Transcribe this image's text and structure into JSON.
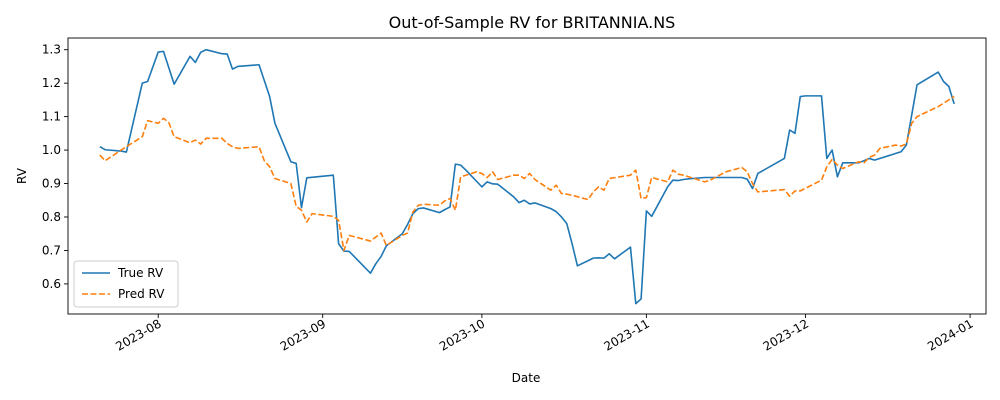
{
  "chart_data": {
    "type": "line",
    "title": "Out-of-Sample RV for BRITANNIA.NS",
    "xlabel": "Date",
    "ylabel": "RV",
    "xlim": [
      "2023-07-15",
      "2024-01-04"
    ],
    "ylim": [
      0.51,
      1.335
    ],
    "x_ticks": [
      {
        "date": "2023-08-01",
        "label": "2023-08"
      },
      {
        "date": "2023-09-01",
        "label": "2023-09"
      },
      {
        "date": "2023-10-01",
        "label": "2023-10"
      },
      {
        "date": "2023-11-01",
        "label": "2023-11"
      },
      {
        "date": "2023-12-01",
        "label": "2023-12"
      },
      {
        "date": "2024-01-01",
        "label": "2024-01"
      }
    ],
    "y_ticks": [
      {
        "value": 0.6,
        "label": "0.6"
      },
      {
        "value": 0.7,
        "label": "0.7"
      },
      {
        "value": 0.8,
        "label": "0.8"
      },
      {
        "value": 0.9,
        "label": "0.9"
      },
      {
        "value": 1.0,
        "label": "1.0"
      },
      {
        "value": 1.1,
        "label": "1.1"
      },
      {
        "value": 1.2,
        "label": "1.2"
      },
      {
        "value": 1.3,
        "label": "1.3"
      }
    ],
    "grid": false,
    "legend_position": "lower-left",
    "series": [
      {
        "name": "True RV",
        "color": "#1f77b4",
        "dash": "solid",
        "points": [
          [
            "2023-07-21",
            1.01
          ],
          [
            "2023-07-22",
            1.001
          ],
          [
            "2023-07-25",
            0.997
          ],
          [
            "2023-07-26",
            0.994
          ],
          [
            "2023-07-29",
            1.2
          ],
          [
            "2023-07-30",
            1.205
          ],
          [
            "2023-08-01",
            1.293
          ],
          [
            "2023-08-02",
            1.295
          ],
          [
            "2023-08-04",
            1.197
          ],
          [
            "2023-08-07",
            1.28
          ],
          [
            "2023-08-08",
            1.262
          ],
          [
            "2023-08-09",
            1.292
          ],
          [
            "2023-08-10",
            1.3
          ],
          [
            "2023-08-13",
            1.288
          ],
          [
            "2023-08-14",
            1.287
          ],
          [
            "2023-08-15",
            1.242
          ],
          [
            "2023-08-16",
            1.25
          ],
          [
            "2023-08-20",
            1.255
          ],
          [
            "2023-08-22",
            1.16
          ],
          [
            "2023-08-23",
            1.08
          ],
          [
            "2023-08-26",
            0.965
          ],
          [
            "2023-08-27",
            0.96
          ],
          [
            "2023-08-28",
            0.828
          ],
          [
            "2023-08-29",
            0.917
          ],
          [
            "2023-09-03",
            0.925
          ],
          [
            "2023-09-04",
            0.72
          ],
          [
            "2023-09-05",
            0.698
          ],
          [
            "2023-09-06",
            0.697
          ],
          [
            "2023-09-10",
            0.632
          ],
          [
            "2023-09-11",
            0.66
          ],
          [
            "2023-09-12",
            0.682
          ],
          [
            "2023-09-13",
            0.714
          ],
          [
            "2023-09-16",
            0.75
          ],
          [
            "2023-09-17",
            0.778
          ],
          [
            "2023-09-18",
            0.81
          ],
          [
            "2023-09-19",
            0.825
          ],
          [
            "2023-09-20",
            0.827
          ],
          [
            "2023-09-23",
            0.813
          ],
          [
            "2023-09-24",
            0.822
          ],
          [
            "2023-09-25",
            0.83
          ],
          [
            "2023-09-26",
            0.958
          ],
          [
            "2023-09-27",
            0.955
          ],
          [
            "2023-09-28",
            0.94
          ],
          [
            "2023-10-01",
            0.89
          ],
          [
            "2023-10-02",
            0.905
          ],
          [
            "2023-10-03",
            0.899
          ],
          [
            "2023-10-04",
            0.898
          ],
          [
            "2023-10-07",
            0.86
          ],
          [
            "2023-10-08",
            0.843
          ],
          [
            "2023-10-09",
            0.85
          ],
          [
            "2023-10-10",
            0.839
          ],
          [
            "2023-10-11",
            0.842
          ],
          [
            "2023-10-14",
            0.825
          ],
          [
            "2023-10-15",
            0.816
          ],
          [
            "2023-10-16",
            0.8
          ],
          [
            "2023-10-17",
            0.78
          ],
          [
            "2023-10-18",
            0.72
          ],
          [
            "2023-10-19",
            0.654
          ],
          [
            "2023-10-22",
            0.677
          ],
          [
            "2023-10-23",
            0.678
          ],
          [
            "2023-10-24",
            0.677
          ],
          [
            "2023-10-25",
            0.69
          ],
          [
            "2023-10-26",
            0.675
          ],
          [
            "2023-10-29",
            0.71
          ],
          [
            "2023-10-30",
            0.541
          ],
          [
            "2023-10-31",
            0.555
          ],
          [
            "2023-11-01",
            0.818
          ],
          [
            "2023-11-02",
            0.802
          ],
          [
            "2023-11-05",
            0.89
          ],
          [
            "2023-11-06",
            0.91
          ],
          [
            "2023-11-07",
            0.909
          ],
          [
            "2023-11-08",
            0.912
          ],
          [
            "2023-11-09",
            0.914
          ],
          [
            "2023-11-12",
            0.918
          ],
          [
            "2023-11-13",
            0.918
          ],
          [
            "2023-11-19",
            0.918
          ],
          [
            "2023-11-20",
            0.913
          ],
          [
            "2023-11-21",
            0.885
          ],
          [
            "2023-11-22",
            0.93
          ],
          [
            "2023-11-27",
            0.975
          ],
          [
            "2023-11-28",
            1.06
          ],
          [
            "2023-11-29",
            1.05
          ],
          [
            "2023-11-30",
            1.16
          ],
          [
            "2023-12-01",
            1.162
          ],
          [
            "2023-12-04",
            1.162
          ],
          [
            "2023-12-05",
            0.975
          ],
          [
            "2023-12-06",
            1.0
          ],
          [
            "2023-12-07",
            0.92
          ],
          [
            "2023-12-08",
            0.962
          ],
          [
            "2023-12-11",
            0.962
          ],
          [
            "2023-12-12",
            0.968
          ],
          [
            "2023-12-13",
            0.975
          ],
          [
            "2023-12-14",
            0.97
          ],
          [
            "2023-12-17",
            0.985
          ],
          [
            "2023-12-18",
            0.99
          ],
          [
            "2023-12-19",
            0.995
          ],
          [
            "2023-12-20",
            1.015
          ],
          [
            "2023-12-21",
            1.105
          ],
          [
            "2023-12-22",
            1.195
          ],
          [
            "2023-12-26",
            1.233
          ],
          [
            "2023-12-27",
            1.205
          ],
          [
            "2023-12-28",
            1.19
          ],
          [
            "2023-12-29",
            1.138
          ]
        ]
      },
      {
        "name": "Pred RV",
        "color": "#ff7f0e",
        "dash": "dashed",
        "points": [
          [
            "2023-07-21",
            0.985
          ],
          [
            "2023-07-22",
            0.968
          ],
          [
            "2023-07-25",
            1.0
          ],
          [
            "2023-07-26",
            1.01
          ],
          [
            "2023-07-29",
            1.04
          ],
          [
            "2023-07-30",
            1.088
          ],
          [
            "2023-08-01",
            1.08
          ],
          [
            "2023-08-02",
            1.095
          ],
          [
            "2023-08-03",
            1.082
          ],
          [
            "2023-08-04",
            1.04
          ],
          [
            "2023-08-07",
            1.022
          ],
          [
            "2023-08-08",
            1.03
          ],
          [
            "2023-08-09",
            1.018
          ],
          [
            "2023-08-10",
            1.035
          ],
          [
            "2023-08-13",
            1.035
          ],
          [
            "2023-08-14",
            1.02
          ],
          [
            "2023-08-15",
            1.01
          ],
          [
            "2023-08-16",
            1.005
          ],
          [
            "2023-08-20",
            1.01
          ],
          [
            "2023-08-21",
            0.968
          ],
          [
            "2023-08-22",
            0.95
          ],
          [
            "2023-08-23",
            0.915
          ],
          [
            "2023-08-26",
            0.9
          ],
          [
            "2023-08-27",
            0.832
          ],
          [
            "2023-08-28",
            0.82
          ],
          [
            "2023-08-29",
            0.785
          ],
          [
            "2023-08-30",
            0.81
          ],
          [
            "2023-09-03",
            0.802
          ],
          [
            "2023-09-04",
            0.79
          ],
          [
            "2023-09-05",
            0.7
          ],
          [
            "2023-09-06",
            0.745
          ],
          [
            "2023-09-10",
            0.728
          ],
          [
            "2023-09-11",
            0.74
          ],
          [
            "2023-09-12",
            0.752
          ],
          [
            "2023-09-13",
            0.715
          ],
          [
            "2023-09-16",
            0.745
          ],
          [
            "2023-09-17",
            0.752
          ],
          [
            "2023-09-18",
            0.815
          ],
          [
            "2023-09-19",
            0.835
          ],
          [
            "2023-09-20",
            0.838
          ],
          [
            "2023-09-23",
            0.835
          ],
          [
            "2023-09-24",
            0.848
          ],
          [
            "2023-09-25",
            0.855
          ],
          [
            "2023-09-26",
            0.82
          ],
          [
            "2023-09-27",
            0.92
          ],
          [
            "2023-09-30",
            0.935
          ],
          [
            "2023-10-01",
            0.93
          ],
          [
            "2023-10-02",
            0.918
          ],
          [
            "2023-10-03",
            0.935
          ],
          [
            "2023-10-04",
            0.912
          ],
          [
            "2023-10-07",
            0.925
          ],
          [
            "2023-10-08",
            0.925
          ],
          [
            "2023-10-09",
            0.915
          ],
          [
            "2023-10-10",
            0.93
          ],
          [
            "2023-10-11",
            0.912
          ],
          [
            "2023-10-14",
            0.88
          ],
          [
            "2023-10-15",
            0.895
          ],
          [
            "2023-10-16",
            0.87
          ],
          [
            "2023-10-17",
            0.868
          ],
          [
            "2023-10-18",
            0.865
          ],
          [
            "2023-10-21",
            0.852
          ],
          [
            "2023-10-22",
            0.875
          ],
          [
            "2023-10-23",
            0.89
          ],
          [
            "2023-10-24",
            0.88
          ],
          [
            "2023-10-25",
            0.915
          ],
          [
            "2023-10-29",
            0.925
          ],
          [
            "2023-10-30",
            0.94
          ],
          [
            "2023-10-31",
            0.855
          ],
          [
            "2023-11-01",
            0.858
          ],
          [
            "2023-11-02",
            0.918
          ],
          [
            "2023-11-05",
            0.905
          ],
          [
            "2023-11-06",
            0.94
          ],
          [
            "2023-11-07",
            0.928
          ],
          [
            "2023-11-08",
            0.925
          ],
          [
            "2023-11-09",
            0.92
          ],
          [
            "2023-11-12",
            0.905
          ],
          [
            "2023-11-13",
            0.91
          ],
          [
            "2023-11-16",
            0.935
          ],
          [
            "2023-11-19",
            0.948
          ],
          [
            "2023-11-20",
            0.935
          ],
          [
            "2023-11-21",
            0.9
          ],
          [
            "2023-11-22",
            0.875
          ],
          [
            "2023-11-27",
            0.882
          ],
          [
            "2023-11-28",
            0.862
          ],
          [
            "2023-11-29",
            0.878
          ],
          [
            "2023-11-30",
            0.878
          ],
          [
            "2023-12-04",
            0.91
          ],
          [
            "2023-12-05",
            0.95
          ],
          [
            "2023-12-06",
            0.972
          ],
          [
            "2023-12-07",
            0.955
          ],
          [
            "2023-12-08",
            0.945
          ],
          [
            "2023-12-11",
            0.965
          ],
          [
            "2023-12-12",
            0.962
          ],
          [
            "2023-12-13",
            0.978
          ],
          [
            "2023-12-14",
            0.985
          ],
          [
            "2023-12-15",
            1.005
          ],
          [
            "2023-12-18",
            1.015
          ],
          [
            "2023-12-19",
            1.012
          ],
          [
            "2023-12-20",
            1.018
          ],
          [
            "2023-12-21",
            1.08
          ],
          [
            "2023-12-22",
            1.1
          ],
          [
            "2023-12-26",
            1.13
          ],
          [
            "2023-12-29",
            1.16
          ]
        ]
      }
    ]
  }
}
